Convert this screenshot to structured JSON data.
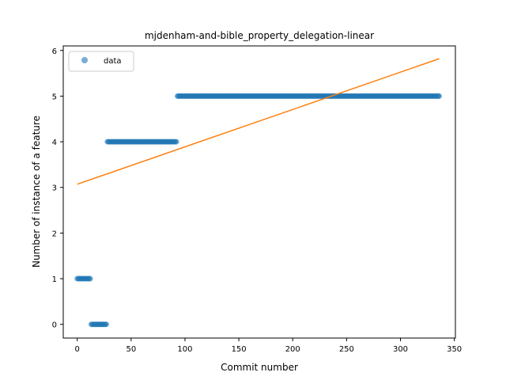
{
  "chart_data": {
    "type": "scatter",
    "title": "mjdenham-and-bible_property_delegation-linear",
    "xlabel": "Commit number",
    "ylabel": "Number of instance of a feature",
    "xlim": [
      -13,
      351
    ],
    "ylim": [
      -0.3,
      6.1
    ],
    "xticks": [
      0,
      50,
      100,
      150,
      200,
      250,
      300,
      350
    ],
    "yticks": [
      0,
      1,
      2,
      3,
      4,
      5,
      6
    ],
    "grid": false,
    "legend": {
      "position": "top-left",
      "entries": [
        "data"
      ]
    },
    "series": [
      {
        "name": "data",
        "kind": "points",
        "color": "#1f77b4",
        "segments": [
          {
            "x_start": 0,
            "x_end": 12,
            "y": 1
          },
          {
            "x_start": 13,
            "x_end": 27,
            "y": 0
          },
          {
            "x_start": 28,
            "x_end": 92,
            "y": 4
          },
          {
            "x_start": 93,
            "x_end": 336,
            "y": 5
          }
        ]
      },
      {
        "kind": "line",
        "color": "#ff7f0e",
        "x": [
          0,
          336
        ],
        "y": [
          3.07,
          5.82
        ]
      }
    ]
  }
}
